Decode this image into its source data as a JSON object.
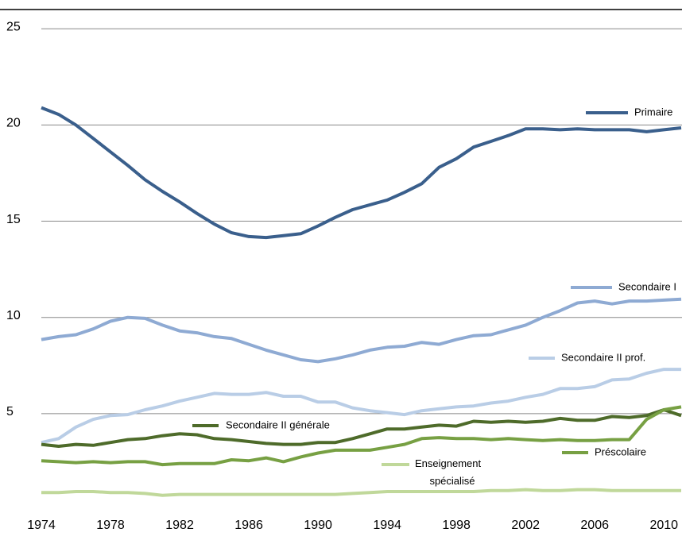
{
  "chart_data": {
    "type": "line",
    "x": [
      1974,
      1975,
      1976,
      1977,
      1978,
      1979,
      1980,
      1981,
      1982,
      1983,
      1984,
      1985,
      1986,
      1987,
      1988,
      1989,
      1990,
      1991,
      1992,
      1993,
      1994,
      1995,
      1996,
      1997,
      1998,
      1999,
      2000,
      2001,
      2002,
      2003,
      2004,
      2005,
      2006,
      2007,
      2008,
      2009,
      2010,
      2011
    ],
    "xlim": [
      1974,
      2011
    ],
    "xticks": [
      1974,
      1978,
      1982,
      1986,
      1990,
      1994,
      1998,
      2002,
      2006,
      2010
    ],
    "ylim": [
      0,
      26
    ],
    "yticks": [
      5,
      10,
      15,
      20,
      25
    ],
    "grid": true,
    "series": [
      {
        "name": "Primaire",
        "color": "#3a5f8c",
        "values": [
          20.9,
          20.55,
          20.0,
          19.3,
          18.6,
          17.9,
          17.15,
          16.55,
          16.0,
          15.4,
          14.85,
          14.4,
          14.2,
          14.15,
          14.25,
          14.35,
          14.75,
          15.2,
          15.6,
          15.85,
          16.1,
          16.5,
          16.95,
          17.8,
          18.25,
          18.85,
          19.15,
          19.45,
          19.8,
          19.8,
          19.75,
          19.8,
          19.75,
          19.75,
          19.75,
          19.65,
          19.75,
          19.85
        ]
      },
      {
        "name": "Secondaire I",
        "color": "#8eaad3",
        "values": [
          8.85,
          9.0,
          9.1,
          9.4,
          9.8,
          10.0,
          9.95,
          9.6,
          9.3,
          9.2,
          9.0,
          8.9,
          8.6,
          8.3,
          8.05,
          7.8,
          7.7,
          7.85,
          8.05,
          8.3,
          8.45,
          8.5,
          8.7,
          8.6,
          8.85,
          9.05,
          9.1,
          9.35,
          9.6,
          10.0,
          10.35,
          10.75,
          10.85,
          10.7,
          10.85,
          10.85,
          10.9,
          10.95
        ]
      },
      {
        "name": "Secondaire II prof.",
        "color": "#b9cde6",
        "values": [
          3.5,
          3.7,
          4.3,
          4.7,
          4.9,
          4.95,
          5.2,
          5.4,
          5.65,
          5.85,
          6.05,
          6.0,
          6.0,
          6.1,
          5.9,
          5.9,
          5.6,
          5.6,
          5.3,
          5.15,
          5.05,
          4.95,
          5.15,
          5.25,
          5.35,
          5.4,
          5.55,
          5.65,
          5.85,
          6.0,
          6.3,
          6.3,
          6.4,
          6.75,
          6.8,
          7.1,
          7.3,
          7.3
        ]
      },
      {
        "name": "Secondaire II générale",
        "color": "#4e6b2a",
        "values": [
          3.4,
          3.3,
          3.4,
          3.35,
          3.5,
          3.65,
          3.7,
          3.85,
          3.95,
          3.9,
          3.7,
          3.65,
          3.55,
          3.45,
          3.4,
          3.4,
          3.5,
          3.5,
          3.7,
          3.95,
          4.2,
          4.2,
          4.3,
          4.4,
          4.35,
          4.6,
          4.55,
          4.6,
          4.55,
          4.6,
          4.75,
          4.65,
          4.65,
          4.85,
          4.8,
          4.9,
          5.2,
          4.9
        ]
      },
      {
        "name": "Préscolaire",
        "color": "#77a043",
        "values": [
          2.55,
          2.5,
          2.45,
          2.5,
          2.45,
          2.5,
          2.5,
          2.35,
          2.4,
          2.4,
          2.4,
          2.6,
          2.55,
          2.7,
          2.5,
          2.75,
          2.95,
          3.1,
          3.1,
          3.1,
          3.25,
          3.4,
          3.7,
          3.75,
          3.7,
          3.7,
          3.65,
          3.7,
          3.65,
          3.6,
          3.65,
          3.6,
          3.6,
          3.65,
          3.65,
          4.7,
          5.2,
          5.35
        ]
      },
      {
        "name": "Enseignement spécialisé",
        "color": "#c0d89a",
        "values": [
          0.9,
          0.9,
          0.95,
          0.95,
          0.9,
          0.9,
          0.85,
          0.75,
          0.8,
          0.8,
          0.8,
          0.8,
          0.8,
          0.8,
          0.8,
          0.8,
          0.8,
          0.8,
          0.85,
          0.9,
          0.95,
          0.95,
          0.95,
          0.95,
          0.95,
          0.95,
          1.0,
          1.0,
          1.05,
          1.0,
          1.0,
          1.05,
          1.05,
          1.0,
          1.0,
          1.0,
          1.0,
          1.0
        ]
      }
    ]
  }
}
